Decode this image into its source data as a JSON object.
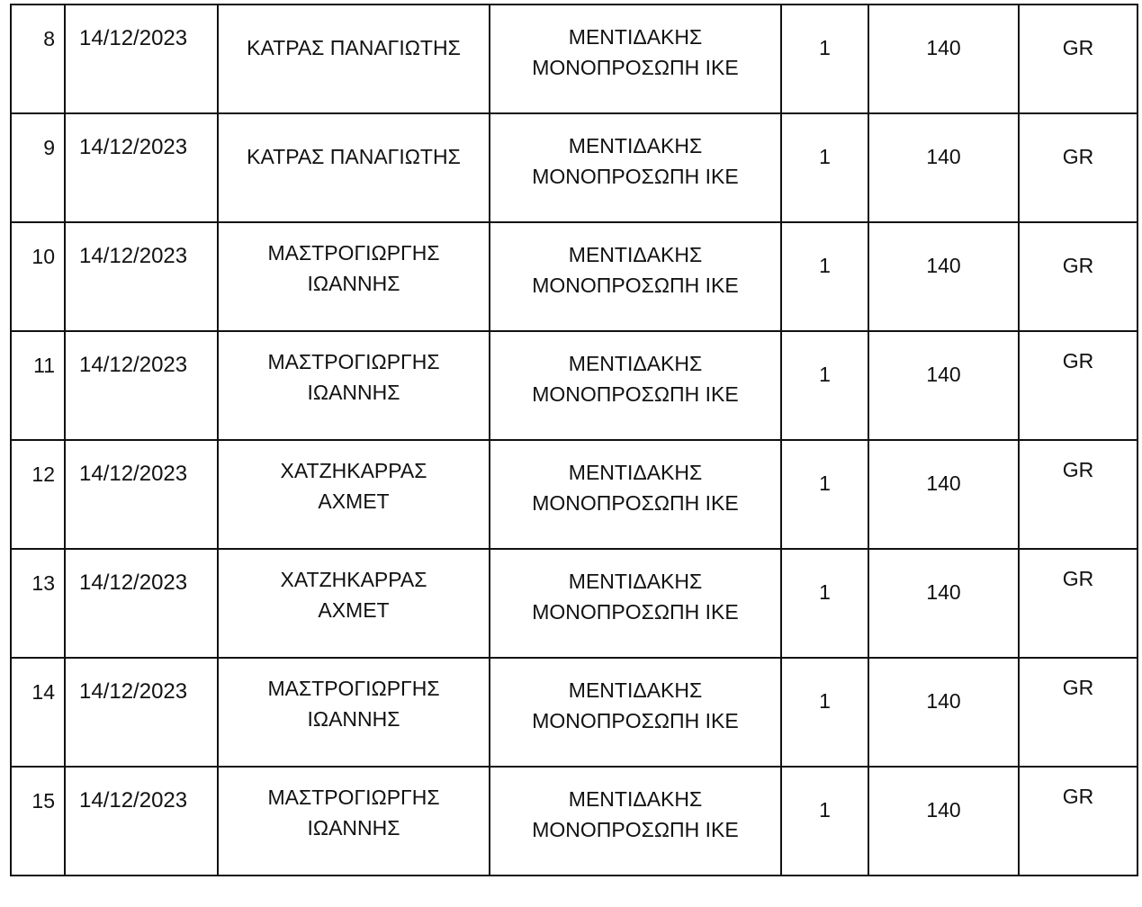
{
  "rows": [
    {
      "no": "8",
      "date": "14/12/2023",
      "name": [
        "ΚΑΤΡΑΣ ΠΑΝΑΓΙΩΤΗΣ"
      ],
      "company": [
        "ΜΕΝΤΙΔΑΚΗΣ",
        "ΜΟΝΟΠΡΟΣΩΠΗ ΙΚΕ"
      ],
      "qty": "1",
      "amount": "140",
      "country": "GR"
    },
    {
      "no": "9",
      "date": "14/12/2023",
      "name": [
        "ΚΑΤΡΑΣ ΠΑΝΑΓΙΩΤΗΣ"
      ],
      "company": [
        "ΜΕΝΤΙΔΑΚΗΣ",
        "ΜΟΝΟΠΡΟΣΩΠΗ ΙΚΕ"
      ],
      "qty": "1",
      "amount": "140",
      "country": "GR"
    },
    {
      "no": "10",
      "date": "14/12/2023",
      "name": [
        "ΜΑΣΤΡΟΓΙΩΡΓΗΣ",
        "ΙΩΑΝΝΗΣ"
      ],
      "company": [
        "ΜΕΝΤΙΔΑΚΗΣ",
        "ΜΟΝΟΠΡΟΣΩΠΗ ΙΚΕ"
      ],
      "qty": "1",
      "amount": "140",
      "country": "GR"
    },
    {
      "no": "11",
      "date": "14/12/2023",
      "name": [
        "ΜΑΣΤΡΟΓΙΩΡΓΗΣ",
        "ΙΩΑΝΝΗΣ"
      ],
      "company": [
        "ΜΕΝΤΙΔΑΚΗΣ",
        "ΜΟΝΟΠΡΟΣΩΠΗ ΙΚΕ"
      ],
      "qty": "1",
      "amount": "140",
      "country": "GR"
    },
    {
      "no": "12",
      "date": "14/12/2023",
      "name": [
        "ΧΑΤΖΗΚΑΡΡΑΣ",
        "ΑΧΜΕΤ"
      ],
      "company": [
        "ΜΕΝΤΙΔΑΚΗΣ",
        "ΜΟΝΟΠΡΟΣΩΠΗ ΙΚΕ"
      ],
      "qty": "1",
      "amount": "140",
      "country": "GR"
    },
    {
      "no": "13",
      "date": "14/12/2023",
      "name": [
        "ΧΑΤΖΗΚΑΡΡΑΣ",
        "ΑΧΜΕΤ"
      ],
      "company": [
        "ΜΕΝΤΙΔΑΚΗΣ",
        "ΜΟΝΟΠΡΟΣΩΠΗ ΙΚΕ"
      ],
      "qty": "1",
      "amount": "140",
      "country": "GR"
    },
    {
      "no": "14",
      "date": "14/12/2023",
      "name": [
        "ΜΑΣΤΡΟΓΙΩΡΓΗΣ",
        "ΙΩΑΝΝΗΣ"
      ],
      "company": [
        "ΜΕΝΤΙΔΑΚΗΣ",
        "ΜΟΝΟΠΡΟΣΩΠΗ ΙΚΕ"
      ],
      "qty": "1",
      "amount": "140",
      "country": "GR"
    },
    {
      "no": "15",
      "date": "14/12/2023",
      "name": [
        "ΜΑΣΤΡΟΓΙΩΡΓΗΣ",
        "ΙΩΑΝΝΗΣ"
      ],
      "company": [
        "ΜΕΝΤΙΔΑΚΗΣ",
        "ΜΟΝΟΠΡΟΣΩΠΗ ΙΚΕ"
      ],
      "qty": "1",
      "amount": "140",
      "country": "GR"
    }
  ]
}
